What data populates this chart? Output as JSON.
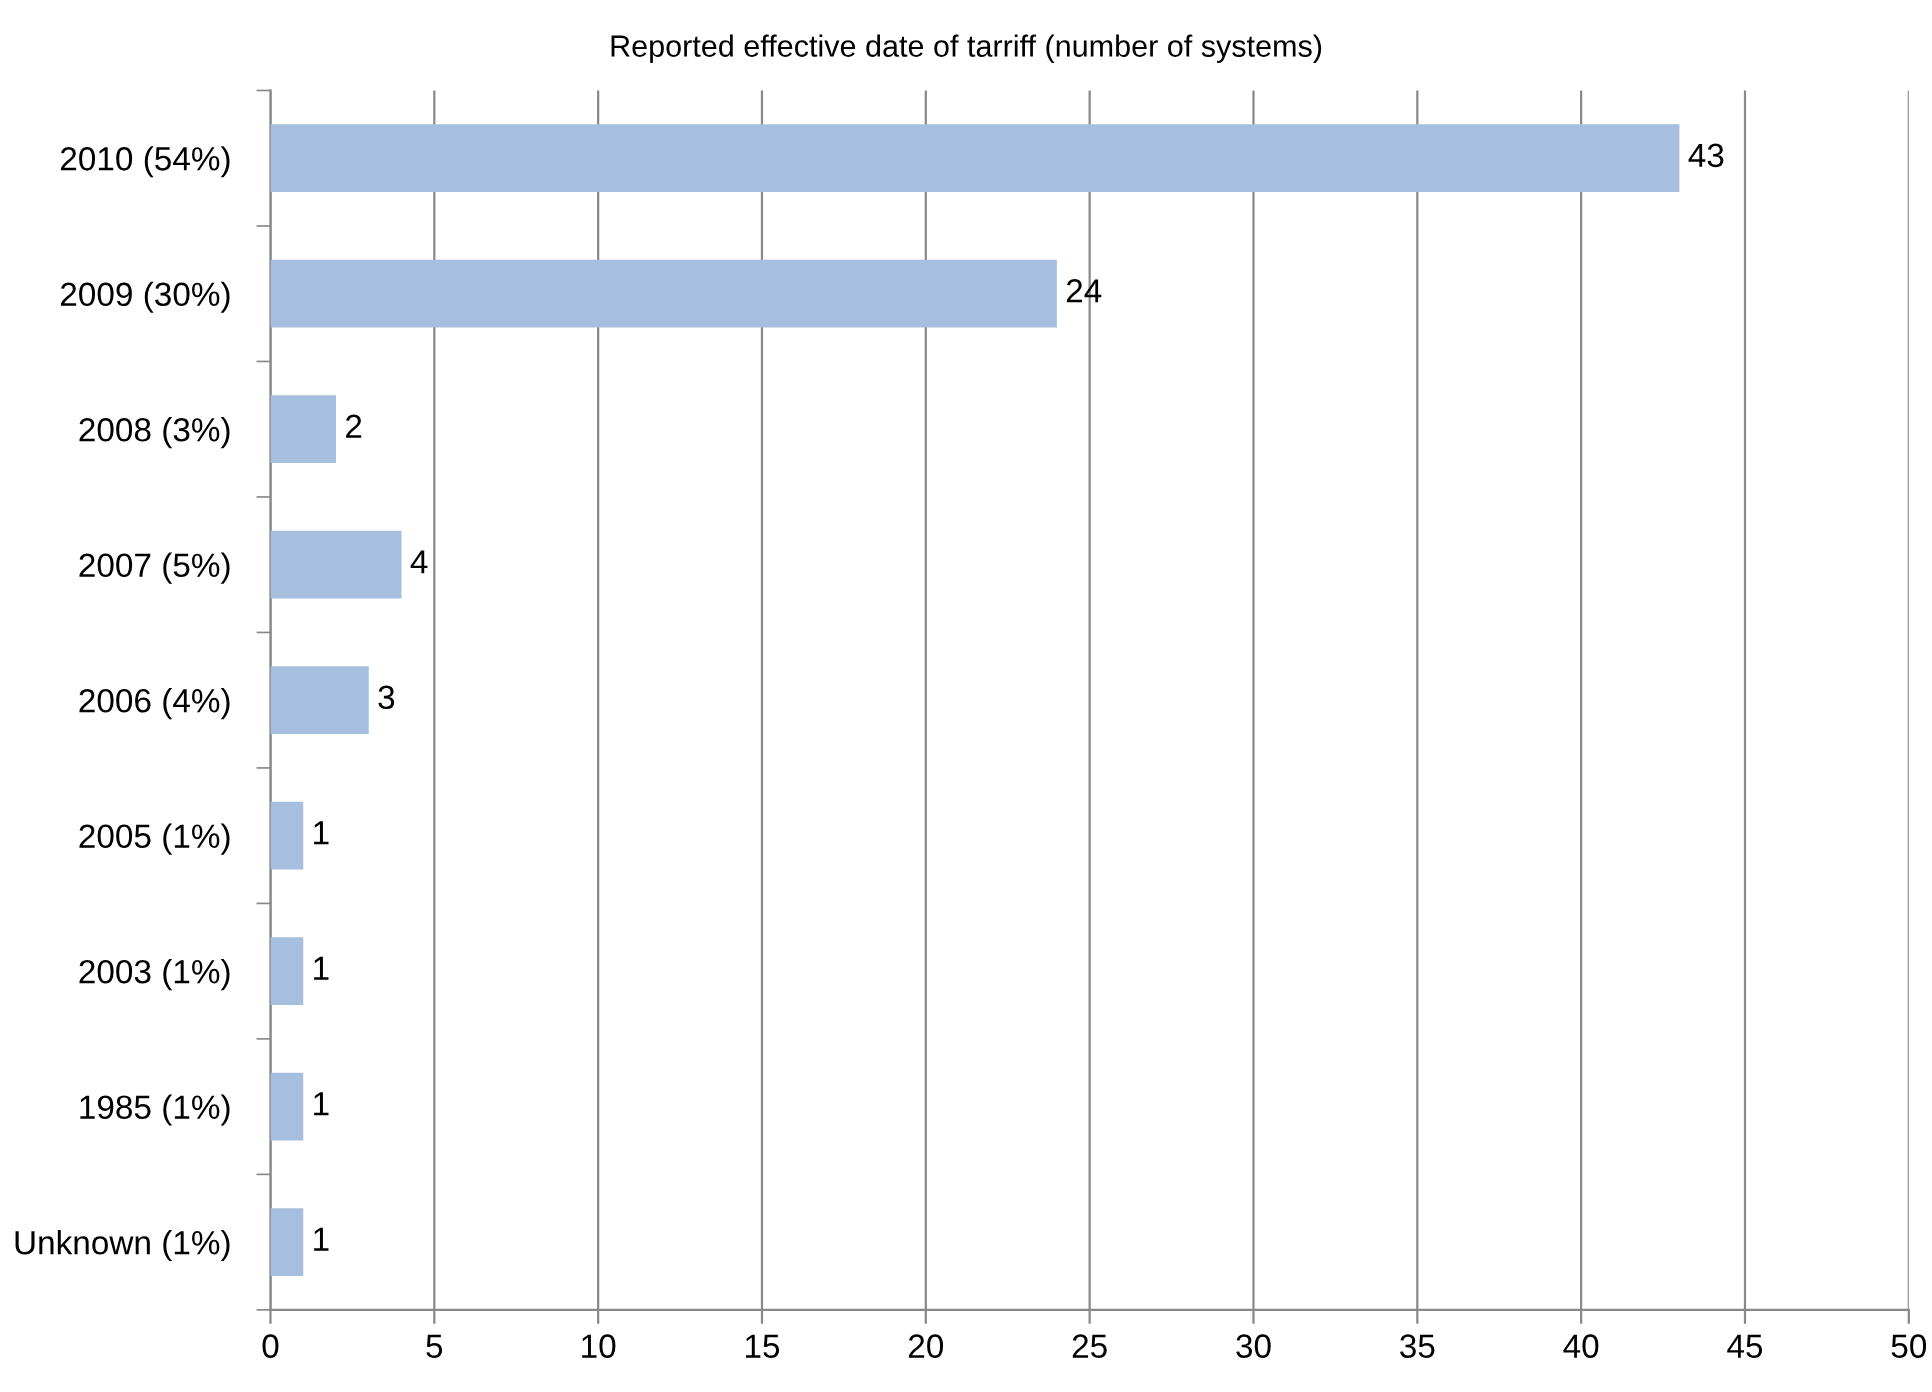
{
  "chart_data": {
    "type": "bar",
    "orientation": "horizontal",
    "title": "Reported effective date of tarriff (number of systems)",
    "categories": [
      "2010 (54%)",
      "2009 (30%)",
      "2008 (3%)",
      "2007 (5%)",
      "2006 (4%)",
      "2005 (1%)",
      "2003 (1%)",
      "1985 (1%)",
      "Unknown (1%)"
    ],
    "values": [
      43,
      24,
      2,
      4,
      3,
      1,
      1,
      1,
      1
    ],
    "color": "#a7bfde",
    "xlim": [
      0,
      50
    ],
    "xticks": [
      0,
      5,
      10,
      15,
      20,
      25,
      30,
      35,
      40,
      45,
      50
    ],
    "grid": "x",
    "data_labels": true
  }
}
